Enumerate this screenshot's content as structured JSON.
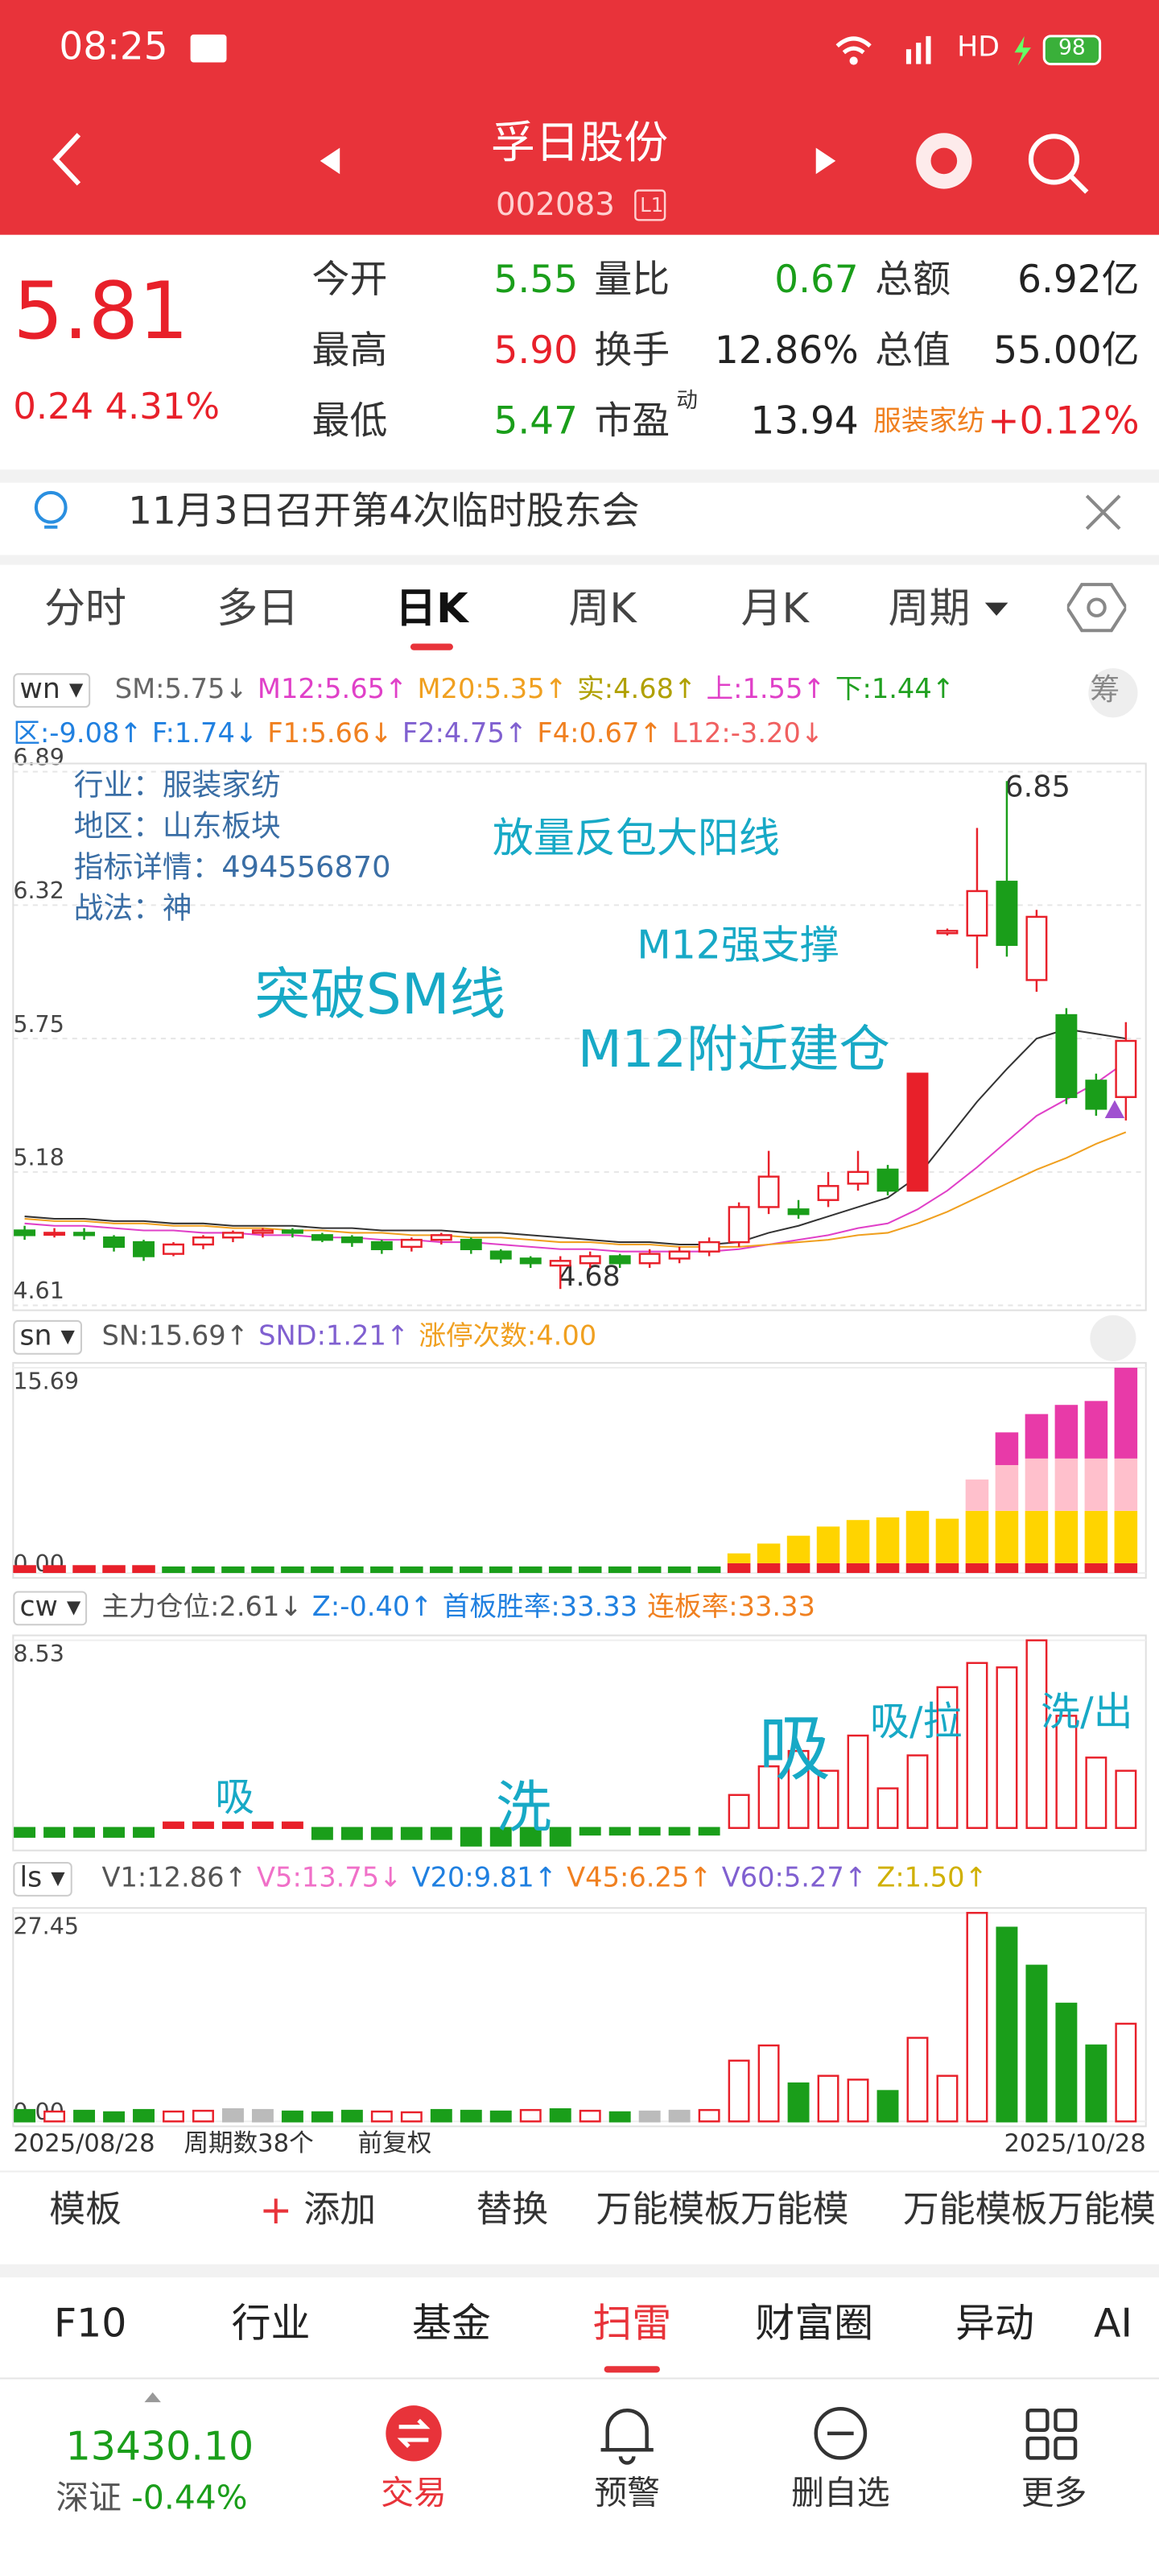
{
  "status_bar": {
    "time": "08:25",
    "network": "HD",
    "battery": "98"
  },
  "header": {
    "title": "孚日股份",
    "code": "002083",
    "board": "L1"
  },
  "quote": {
    "price": "5.81",
    "change": "0.24 4.31%",
    "pe_sup": "动",
    "rows": [
      [
        "今开",
        "5.55",
        "量比",
        "0.67",
        "总额",
        "6.92亿"
      ],
      [
        "最高",
        "5.90",
        "换手",
        "12.86%",
        "总值",
        "55.00亿"
      ],
      [
        "最低",
        "5.47",
        "市盈",
        "13.94",
        "服装家纺",
        "+0.12%"
      ]
    ]
  },
  "notice": "11月3日召开第4次临时股东会",
  "period_tabs": [
    "分时",
    "多日",
    "日K",
    "周K",
    "月K",
    "周期"
  ],
  "main_indicator": {
    "name": "wn",
    "chip": "筹",
    "items": [
      {
        "text": "SM:5.75↓",
        "color": "#666666"
      },
      {
        "text": "M12:5.65↑",
        "color": "#e040c8"
      },
      {
        "text": "M20:5.35↑",
        "color": "#f0a020"
      },
      {
        "text": "实:4.68↑",
        "color": "#b0a000"
      },
      {
        "text": "上:1.55↑",
        "color": "#e040c8"
      },
      {
        "text": "下:1.44↑",
        "color": "#20a020"
      }
    ],
    "items2": [
      {
        "text": "区:-9.08↑",
        "color": "#2080e0"
      },
      {
        "text": "F:1.74↓",
        "color": "#2080e0"
      },
      {
        "text": "F1:5.66↓",
        "color": "#f08020"
      },
      {
        "text": "F2:4.75↑",
        "color": "#8060d0"
      },
      {
        "text": "F4:0.67↑",
        "color": "#f08020"
      },
      {
        "text": "L12:-3.20↓",
        "color": "#f06060"
      }
    ]
  },
  "kline": {
    "ylim": [
      4.61,
      6.89
    ],
    "yticks": [
      6.89,
      6.32,
      5.75,
      5.18,
      4.61
    ],
    "info": [
      "行业：服装家纺",
      "地区：山东板块",
      "指标详情：494556870",
      "战法：神"
    ],
    "annotations": [
      "放量反包大阳线",
      "M12强支撑",
      "突破SM线",
      "M12附近建仓"
    ],
    "high_label": "6.85",
    "low_label": "4.68",
    "open": [
      4.93,
      4.92,
      4.92,
      4.9,
      4.88,
      4.83,
      4.87,
      4.9,
      4.92,
      4.93,
      4.91,
      4.9,
      4.88,
      4.86,
      4.89,
      4.89,
      4.84,
      4.81,
      4.78,
      4.79,
      4.82,
      4.79,
      4.81,
      4.84,
      4.88,
      5.03,
      5.02,
      5.06,
      5.13,
      5.19,
      5.1,
      6.2,
      6.19,
      6.42,
      6.0,
      5.85,
      5.57,
      5.5
    ],
    "close": [
      4.91,
      4.92,
      4.91,
      4.86,
      4.82,
      4.87,
      4.9,
      4.92,
      4.93,
      4.92,
      4.89,
      4.88,
      4.85,
      4.89,
      4.91,
      4.85,
      4.81,
      4.79,
      4.8,
      4.82,
      4.79,
      4.83,
      4.84,
      4.88,
      5.03,
      5.16,
      5.0,
      5.12,
      5.18,
      5.1,
      5.6,
      6.21,
      6.38,
      6.15,
      6.27,
      5.5,
      5.45,
      5.74
    ],
    "high": [
      4.95,
      4.94,
      4.94,
      4.91,
      4.89,
      4.88,
      4.91,
      4.93,
      4.94,
      4.94,
      4.92,
      4.91,
      4.89,
      4.9,
      4.92,
      4.9,
      4.85,
      4.82,
      4.82,
      4.84,
      4.83,
      4.85,
      4.86,
      4.9,
      5.05,
      5.27,
      5.06,
      5.18,
      5.27,
      5.21,
      5.6,
      6.22,
      6.65,
      6.85,
      6.3,
      5.88,
      5.6,
      5.82
    ],
    "low": [
      4.89,
      4.9,
      4.89,
      4.84,
      4.8,
      4.82,
      4.85,
      4.88,
      4.9,
      4.9,
      4.88,
      4.86,
      4.83,
      4.84,
      4.87,
      4.83,
      4.79,
      4.77,
      4.68,
      4.77,
      4.77,
      4.77,
      4.79,
      4.82,
      4.86,
      5.0,
      4.98,
      5.03,
      5.1,
      5.08,
      5.1,
      6.19,
      6.05,
      6.1,
      5.95,
      5.47,
      5.42,
      5.4
    ],
    "lines": [
      {
        "color": "#333333",
        "values": [
          4.99,
          4.98,
          4.98,
          4.97,
          4.97,
          4.96,
          4.96,
          4.95,
          4.95,
          4.95,
          4.94,
          4.94,
          4.93,
          4.93,
          4.93,
          4.92,
          4.92,
          4.91,
          4.9,
          4.89,
          4.88,
          4.88,
          4.87,
          4.87,
          4.88,
          4.92,
          4.95,
          4.99,
          5.03,
          5.07,
          5.16,
          5.32,
          5.48,
          5.62,
          5.75,
          5.79,
          5.77,
          5.75
        ]
      },
      {
        "color": "#e040c8",
        "values": [
          4.96,
          4.95,
          4.95,
          4.94,
          4.93,
          4.93,
          4.92,
          4.92,
          4.91,
          4.91,
          4.9,
          4.9,
          4.89,
          4.89,
          4.88,
          4.88,
          4.87,
          4.86,
          4.85,
          4.85,
          4.84,
          4.84,
          4.84,
          4.84,
          4.85,
          4.87,
          4.89,
          4.91,
          4.94,
          4.96,
          5.02,
          5.1,
          5.2,
          5.31,
          5.42,
          5.49,
          5.56,
          5.65
        ]
      },
      {
        "color": "#f0a020",
        "values": [
          4.98,
          4.97,
          4.97,
          4.96,
          4.96,
          4.95,
          4.95,
          4.94,
          4.94,
          4.93,
          4.93,
          4.92,
          4.92,
          4.91,
          4.91,
          4.9,
          4.9,
          4.89,
          4.88,
          4.88,
          4.87,
          4.87,
          4.86,
          4.86,
          4.86,
          4.87,
          4.88,
          4.89,
          4.91,
          4.92,
          4.96,
          5.01,
          5.07,
          5.13,
          5.19,
          5.24,
          5.3,
          5.35
        ]
      }
    ]
  },
  "sn": {
    "name": "sn",
    "items": [
      {
        "text": "SN:15.69↑",
        "color": "#555555"
      },
      {
        "text": "SND:1.21↑",
        "color": "#8060d0"
      },
      {
        "text": "涨停次数:4.00",
        "color": "#f0a020"
      }
    ],
    "ylim": [
      0,
      15.69
    ],
    "yticks": [
      15.69,
      {
        "value": 0,
        "label": "0.00"
      }
    ],
    "series": [
      {
        "color": "#e8202a",
        "values": [
          0.6,
          0.6,
          0.6,
          0.6,
          0.6,
          0,
          0,
          0,
          0,
          0,
          0,
          0,
          0,
          0,
          0,
          0,
          0,
          0,
          0,
          0,
          0,
          0,
          0,
          0,
          0.75,
          0.75,
          0.75,
          0.75,
          0.75,
          0.75,
          0.75,
          0.75,
          0.75,
          0.75,
          0.75,
          0.75,
          0.75,
          0.75
        ]
      },
      {
        "color": "#1a9e1a",
        "values": [
          0,
          0,
          0,
          0,
          0,
          0.5,
          0.5,
          0.5,
          0.5,
          0.5,
          0.5,
          0.5,
          0.5,
          0.5,
          0.5,
          0.5,
          0.5,
          0.5,
          0.5,
          0.5,
          0.5,
          0.5,
          0.5,
          0.5,
          0,
          0,
          0,
          0,
          0,
          0,
          0,
          0,
          0,
          0,
          0,
          0,
          0,
          0
        ]
      },
      {
        "color": "#ffd400",
        "values": [
          0,
          0,
          0,
          0,
          0,
          0,
          0,
          0,
          0,
          0,
          0,
          0,
          0,
          0,
          0,
          0,
          0,
          0,
          0,
          0,
          0,
          0,
          0,
          0,
          0.75,
          1.5,
          2.1,
          2.8,
          3.3,
          3.5,
          4,
          3.4,
          4,
          4,
          4,
          4,
          4,
          4
        ]
      },
      {
        "color": "#ffc0cc",
        "values": [
          0,
          0,
          0,
          0,
          0,
          0,
          0,
          0,
          0,
          0,
          0,
          0,
          0,
          0,
          0,
          0,
          0,
          0,
          0,
          0,
          0,
          0,
          0,
          0,
          0,
          0,
          0,
          0,
          0,
          0,
          0,
          0,
          2.4,
          3.5,
          4,
          4,
          4,
          4
        ]
      },
      {
        "color": "#e83aa8",
        "values": [
          0,
          0,
          0,
          0,
          0,
          0,
          0,
          0,
          0,
          0,
          0,
          0,
          0,
          0,
          0,
          0,
          0,
          0,
          0,
          0,
          0,
          0,
          0,
          0,
          0,
          0,
          0,
          0,
          0,
          0,
          0,
          0,
          0,
          2.5,
          3.4,
          4.1,
          4.4,
          6.94
        ]
      }
    ]
  },
  "cw": {
    "name": "cw",
    "items": [
      {
        "text": "主力仓位:2.61↓",
        "color": "#555555"
      },
      {
        "text": "Z:-0.40↑",
        "color": "#2080e0"
      },
      {
        "text": "首板胜率:33.33",
        "color": "#2080e0"
      },
      {
        "text": "连板率:33.33",
        "color": "#f08020"
      }
    ],
    "ylim": [
      -0.8,
      8.53
    ],
    "yticks": [
      8.53
    ],
    "annotations": [
      "吸",
      "洗",
      "吸",
      "吸/拉",
      "洗/出"
    ],
    "values": [
      -0.4,
      -0.4,
      -0.4,
      -0.4,
      -0.4,
      0.25,
      0.25,
      0.25,
      0.25,
      0.25,
      -0.5,
      -0.5,
      -0.5,
      -0.5,
      -0.5,
      -0.8,
      -0.8,
      -0.8,
      -0.8,
      -0.3,
      -0.3,
      -0.3,
      -0.3,
      -0.3,
      1.5,
      2.8,
      3.5,
      2.6,
      4.2,
      1.8,
      3.3,
      6.4,
      7.5,
      7.3,
      8.53,
      5.1,
      3.2,
      2.6
    ]
  },
  "ls": {
    "name": "ls",
    "items": [
      {
        "text": "V1:12.86↑",
        "color": "#555555"
      },
      {
        "text": "V5:13.75↓",
        "color": "#f070c8"
      },
      {
        "text": "V20:9.81↑",
        "color": "#2080e0"
      },
      {
        "text": "V45:6.25↑",
        "color": "#f08020"
      },
      {
        "text": "V60:5.27↑",
        "color": "#8060d0"
      },
      {
        "text": "Z:1.50↑",
        "color": "#d0b000"
      }
    ],
    "ylim": [
      0,
      27.45
    ],
    "yticks": [
      27.45,
      {
        "value": 0,
        "label": "0.00"
      }
    ],
    "values": [
      1.5,
      1.3,
      1.4,
      1.2,
      1.5,
      1.3,
      1.4,
      1.6,
      1.5,
      1.3,
      1.2,
      1.4,
      1.3,
      1.2,
      1.5,
      1.4,
      1.3,
      1.5,
      1.6,
      1.4,
      1.2,
      1.3,
      1.4,
      1.5,
      8,
      10,
      5,
      6,
      5.5,
      4,
      11,
      6,
      27.45,
      25.5,
      20.5,
      15.5,
      10,
      12.86
    ],
    "colors": [
      "#1a9e1a",
      "#e8202a",
      "#1a9e1a",
      "#1a9e1a",
      "#1a9e1a",
      "#e8202a",
      "#e8202a",
      "#bbbbbb",
      "#bbbbbb",
      "#1a9e1a",
      "#1a9e1a",
      "#1a9e1a",
      "#e8202a",
      "#e8202a",
      "#1a9e1a",
      "#1a9e1a",
      "#1a9e1a",
      "#e8202a",
      "#1a9e1a",
      "#e8202a",
      "#1a9e1a",
      "#bbbbbb",
      "#bbbbbb",
      "#e8202a",
      "#e8202a",
      "#e8202a",
      "#1a9e1a",
      "#e8202a",
      "#e8202a",
      "#1a9e1a",
      "#e8202a",
      "#e8202a",
      "#e8202a",
      "#1a9e1a",
      "#1a9e1a",
      "#1a9e1a",
      "#1a9e1a",
      "#e8202a"
    ]
  },
  "chart_footer": {
    "start": "2025/08/28",
    "count": "周期数38个",
    "adjust": "前复权",
    "end": "2025/10/28"
  },
  "toolbar": [
    "模板",
    "添加",
    "替换",
    "万能模板万能模",
    "万能模板万能模"
  ],
  "bottom_tabs": [
    "F10",
    "行业",
    "基金",
    "扫雷",
    "财富圈",
    "异动",
    "AI"
  ],
  "index": {
    "value": "13430.10",
    "name": "深证",
    "change": "-0.44%"
  },
  "nav": [
    "交易",
    "预警",
    "删自选",
    "更多"
  ]
}
